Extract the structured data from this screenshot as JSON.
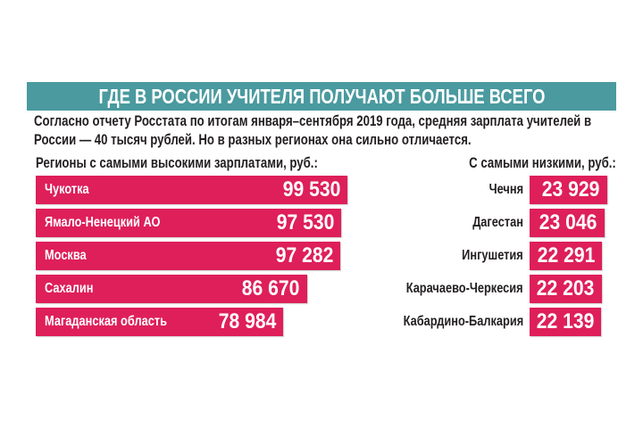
{
  "title": "ГДЕ В РОССИИ УЧИТЕЛЯ ПОЛУЧАЮТ БОЛЬШЕ ВСЕГО",
  "subtitle_line1": "Согласно отчету Росстата по итогам января–сентября 2019 года, средняя зарплата учителей в",
  "subtitle_line2": "России — 40 тысяч рублей. Но в разных регионах она сильно отличается.",
  "colors": {
    "header": "#4a9a9f",
    "bar": "#de1f5a"
  },
  "chart_data": [
    {
      "type": "bar",
      "orientation": "horizontal",
      "title": "Регионы с самыми высокими зарплатами, руб.:",
      "categories": [
        "Чукотка",
        "Ямало-Ненецкий АО",
        "Москва",
        "Сахалин",
        "Магаданская область"
      ],
      "values": [
        99530,
        97530,
        97282,
        86670,
        78984
      ],
      "labels": [
        "99 530",
        "97 530",
        "97 282",
        "86 670",
        "78 984"
      ]
    },
    {
      "type": "bar",
      "orientation": "horizontal",
      "title": "С самыми низкими, руб.:",
      "categories": [
        "Чечня",
        "Дагестан",
        "Ингушетия",
        "Карачаево-Черкесия",
        "Кабардино-Балкария"
      ],
      "values": [
        23929,
        23046,
        22291,
        22203,
        22139
      ],
      "labels": [
        "23 929",
        "23 046",
        "22 291",
        "22 203",
        "22 139"
      ]
    }
  ]
}
